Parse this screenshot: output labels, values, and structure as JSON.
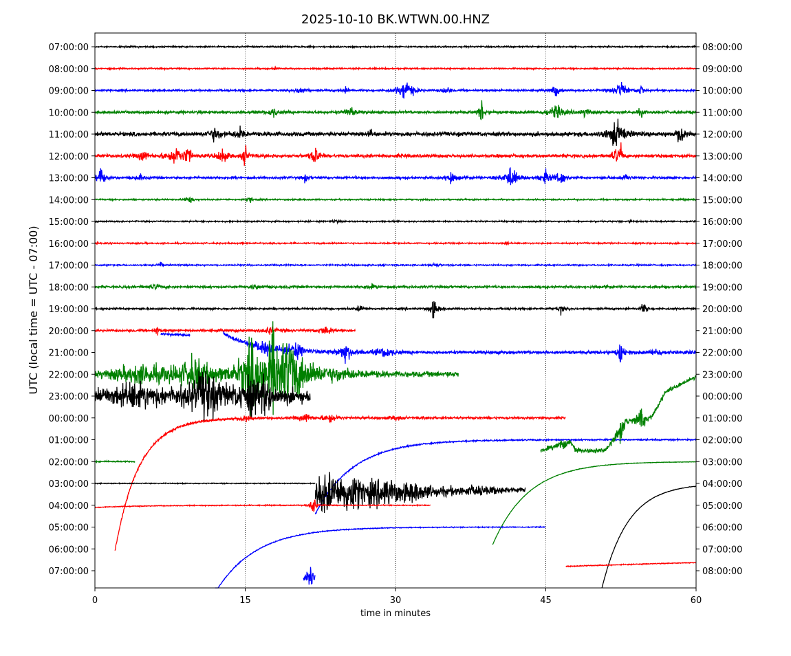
{
  "chart_data": {
    "type": "line",
    "title": "2025-10-10 BK.WTWN.00.HNZ",
    "xlabel": "time in minutes",
    "ylabel": "UTC (local time = UTC - 07:00)",
    "xlim": [
      0,
      60
    ],
    "xticks": [
      "0",
      "15",
      "30",
      "45",
      "60"
    ],
    "grid": "vertical dotted at 15, 30, 45",
    "left_labels": [
      "07:00:00",
      "08:00:00",
      "09:00:00",
      "10:00:00",
      "11:00:00",
      "12:00:00",
      "13:00:00",
      "14:00:00",
      "15:00:00",
      "16:00:00",
      "17:00:00",
      "18:00:00",
      "19:00:00",
      "20:00:00",
      "21:00:00",
      "22:00:00",
      "23:00:00",
      "00:00:00",
      "01:00:00",
      "02:00:00",
      "03:00:00",
      "04:00:00",
      "05:00:00",
      "06:00:00",
      "07:00:00"
    ],
    "right_labels": [
      "08:00:00",
      "09:00:00",
      "10:00:00",
      "11:00:00",
      "12:00:00",
      "13:00:00",
      "14:00:00",
      "15:00:00",
      "16:00:00",
      "17:00:00",
      "18:00:00",
      "19:00:00",
      "20:00:00",
      "21:00:00",
      "22:00:00",
      "23:00:00",
      "00:00:00",
      "01:00:00",
      "02:00:00",
      "03:00:00",
      "04:00:00",
      "05:00:00",
      "06:00:00",
      "07:00:00",
      "08:00:00"
    ],
    "colors": {
      "black": "#000000",
      "red": "#ff0000",
      "blue": "#0000ff",
      "green": "#008000"
    },
    "segments": [
      {
        "row": 0,
        "color": "black",
        "start": 0,
        "end": 60,
        "noise": 0.03,
        "events": []
      },
      {
        "row": 1,
        "color": "red",
        "start": 0,
        "end": 60,
        "noise": 0.03,
        "events": [
          [
            18,
            0.05,
            0.3
          ]
        ]
      },
      {
        "row": 2,
        "color": "blue",
        "start": 0,
        "end": 60,
        "noise": 0.04,
        "events": [
          [
            20.5,
            0.25,
            0.3
          ],
          [
            25,
            0.15,
            0.3
          ],
          [
            31,
            0.5,
            0.6
          ],
          [
            35,
            0.2,
            0.3
          ],
          [
            46,
            0.3,
            0.3
          ],
          [
            52.5,
            0.4,
            0.5
          ],
          [
            54.5,
            0.3,
            0.2
          ]
        ]
      },
      {
        "row": 3,
        "color": "green",
        "start": 0,
        "end": 60,
        "noise": 0.06,
        "events": [
          [
            17.8,
            0.2,
            0.4
          ],
          [
            25.5,
            0.3,
            0.3
          ],
          [
            38.6,
            0.5,
            0.2
          ],
          [
            46,
            0.3,
            0.6
          ],
          [
            49,
            0.25,
            0.3
          ],
          [
            54.5,
            0.2,
            0.2
          ]
        ]
      },
      {
        "row": 4,
        "color": "black",
        "start": 0,
        "end": 60,
        "noise": 0.09,
        "events": [
          [
            12,
            0.35,
            0.4
          ],
          [
            14.5,
            0.3,
            0.3
          ],
          [
            27.5,
            0.3,
            0.1
          ],
          [
            52,
            0.6,
            0.6
          ],
          [
            58.5,
            0.6,
            0.3
          ]
        ]
      },
      {
        "row": 5,
        "color": "red",
        "start": 0,
        "end": 60,
        "noise": 0.07,
        "events": [
          [
            4.8,
            0.3,
            0.3
          ],
          [
            8,
            0.45,
            0.6
          ],
          [
            9.3,
            0.5,
            0.2
          ],
          [
            12.7,
            0.45,
            0.3
          ],
          [
            15,
            0.5,
            0.2
          ],
          [
            22,
            0.45,
            0.3
          ],
          [
            52,
            0.3,
            0.3
          ],
          [
            52.5,
            0.5,
            0.1
          ]
        ]
      },
      {
        "row": 6,
        "color": "blue",
        "start": 0,
        "end": 60,
        "noise": 0.05,
        "events": [
          [
            0.6,
            0.5,
            0.3
          ],
          [
            4.5,
            0.2,
            0.2
          ],
          [
            21,
            0.2,
            0.2
          ],
          [
            35.5,
            0.3,
            0.4
          ],
          [
            41.5,
            0.55,
            0.5
          ],
          [
            45,
            0.3,
            0.4
          ],
          [
            46.5,
            0.4,
            0.3
          ],
          [
            53,
            0.2,
            0.2
          ]
        ]
      },
      {
        "row": 7,
        "color": "green",
        "start": 0,
        "end": 60,
        "noise": 0.03,
        "events": [
          [
            9.5,
            0.15,
            0.3
          ],
          [
            15.5,
            0.15,
            0.2
          ]
        ]
      },
      {
        "row": 8,
        "color": "black",
        "start": 0,
        "end": 60,
        "noise": 0.03,
        "events": [
          [
            24,
            0.06,
            0.4
          ],
          [
            53.5,
            0.1,
            0.1
          ]
        ]
      },
      {
        "row": 9,
        "color": "red",
        "start": 0,
        "end": 60,
        "noise": 0.03,
        "events": [
          [
            41,
            0.15,
            0.1
          ]
        ]
      },
      {
        "row": 10,
        "color": "blue",
        "start": 0,
        "end": 60,
        "noise": 0.03,
        "events": [
          [
            6.6,
            0.25,
            0.1
          ],
          [
            34,
            0.1,
            0.3
          ]
        ]
      },
      {
        "row": 11,
        "color": "green",
        "start": 0,
        "end": 60,
        "noise": 0.05,
        "events": [
          [
            6,
            0.1,
            0.5
          ],
          [
            16,
            0.1,
            0.5
          ],
          [
            27.5,
            0.1,
            0.5
          ]
        ]
      },
      {
        "row": 12,
        "color": "black",
        "start": 0,
        "end": 60,
        "noise": 0.04,
        "events": [
          [
            26.5,
            0.15,
            0.3
          ],
          [
            33.8,
            0.45,
            0.3
          ],
          [
            46.5,
            0.2,
            0.2
          ],
          [
            54.8,
            0.35,
            0.2
          ]
        ]
      },
      {
        "row": 13,
        "color": "red",
        "start": 0,
        "end": 26,
        "noise": 0.05,
        "events": [
          [
            6.2,
            0.2,
            0.2
          ],
          [
            17.5,
            0.2,
            0.5
          ],
          [
            23,
            0.2,
            0.5
          ]
        ]
      },
      {
        "row": 14,
        "color": "blue",
        "start": 6.6,
        "end": 9.5,
        "noise": 0.05,
        "events": [],
        "drift": {
          "offset": -0.85,
          "tau": 40
        }
      },
      {
        "row": 14,
        "color": "blue",
        "start": 12.8,
        "end": 60,
        "noise": 0.07,
        "events": [
          [
            17,
            0.35,
            0.8
          ],
          [
            20,
            0.4,
            0.6
          ],
          [
            25,
            0.4,
            0.6
          ],
          [
            29,
            0.25,
            0.6
          ],
          [
            52.5,
            0.6,
            0.2
          ],
          [
            56,
            0.15,
            0.4
          ]
        ],
        "drift": {
          "offset": -0.9,
          "tau": 3
        }
      },
      {
        "row": 15,
        "color": "green",
        "start": 0,
        "end": 36.3,
        "noise": 0.12,
        "events": [
          [
            4.5,
            0.4,
            2.5
          ],
          [
            10,
            0.7,
            1.5
          ],
          [
            15.5,
            1.3,
            0.8
          ],
          [
            17.8,
            1.4,
            1.2
          ],
          [
            19.5,
            1.1,
            1.5
          ],
          [
            24,
            0.2,
            2
          ]
        ]
      },
      {
        "row": 16,
        "color": "black",
        "start": 0,
        "end": 21.5,
        "noise": 0.3,
        "events": [
          [
            4,
            0.4,
            2
          ],
          [
            11,
            1.0,
            1.2
          ],
          [
            15.5,
            0.6,
            1
          ],
          [
            17,
            0.5,
            0.6
          ]
        ]
      },
      {
        "row": 17,
        "color": "red",
        "start": 2.0,
        "end": 47,
        "noise": 0.05,
        "events": [
          [
            15,
            0.2,
            0.4
          ],
          [
            21,
            0.2,
            0.5
          ],
          [
            23.5,
            0.3,
            0.4
          ],
          [
            30,
            0.1,
            0.5
          ]
        ],
        "drift": {
          "offset": 6.1,
          "tau": 2.4
        }
      },
      {
        "row": 18,
        "color": "blue",
        "start": 22.0,
        "end": 60,
        "noise": 0.03,
        "events": [],
        "drift": {
          "offset": 3.4,
          "tau": 3.8
        }
      },
      {
        "row": 19,
        "color": "green",
        "start": 0,
        "end": 4,
        "noise": 0.03,
        "events": []
      },
      {
        "row": 18,
        "color": "green",
        "start": 44.5,
        "end": 60,
        "noise": 0.1,
        "events": [
          [
            46.5,
            0.3,
            0.3
          ],
          [
            52.5,
            0.5,
            0.3
          ],
          [
            54.5,
            0.6,
            0.3
          ]
        ],
        "drift": {
          "offset": 0.5,
          "tau": 40,
          "rise": [
            [
              44.5,
              0.5
            ],
            [
              47.5,
              0.1
            ],
            [
              48,
              0.5
            ],
            [
              51,
              0.5
            ],
            [
              53,
              -0.8
            ],
            [
              55.5,
              -1.0
            ],
            [
              57,
              -2.2
            ],
            [
              60,
              -2.9
            ]
          ]
        }
      },
      {
        "row": 19,
        "color": "green",
        "start": 39.7,
        "end": 60,
        "noise": 0.01,
        "events": [],
        "drift": {
          "offset": 3.8,
          "tau": 3.6
        }
      },
      {
        "row": 20,
        "color": "black",
        "start": 0,
        "end": 22,
        "noise": 0.02,
        "events": []
      },
      {
        "row": 20,
        "color": "black",
        "start": 22,
        "end": 43,
        "noise": 0.08,
        "events": [
          [
            23,
            0.8,
            1.5
          ],
          [
            25.5,
            0.7,
            1.5
          ],
          [
            29,
            0.5,
            1.5
          ],
          [
            32,
            0.3,
            2
          ],
          [
            38,
            0.15,
            3
          ]
        ],
        "drift": {
          "offset": 0.5,
          "tau": 40
        }
      },
      {
        "row": 20,
        "color": "black",
        "start": 50.6,
        "end": 60,
        "noise": 0.01,
        "events": [],
        "drift": {
          "offset": 4.8,
          "tau": 2.6
        }
      },
      {
        "row": 21,
        "color": "red",
        "start": 0,
        "end": 33.5,
        "noise": 0.02,
        "events": [
          [
            21.8,
            0.6,
            0.2
          ]
        ],
        "drift": {
          "offset": 0.1,
          "tau": 5
        }
      },
      {
        "row": 21,
        "color": "red",
        "start": 47,
        "end": 60,
        "noise": 0.02,
        "events": [],
        "drift": {
          "offset": 2.8,
          "tau": 200
        }
      },
      {
        "row": 22,
        "color": "blue",
        "start": 12,
        "end": 45,
        "noise": 0.02,
        "events": [],
        "drift": {
          "offset": 3.0,
          "tau": 4
        }
      },
      {
        "row": 24,
        "color": "blue",
        "start": 20.8,
        "end": 22,
        "noise": 0.1,
        "events": [
          [
            21.5,
            0.3,
            0.3
          ]
        ],
        "drift": {
          "offset": 0.3,
          "tau": 40
        }
      }
    ]
  }
}
